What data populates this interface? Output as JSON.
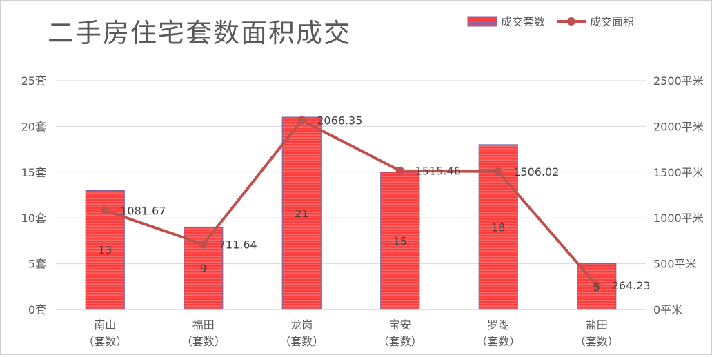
{
  "chart_data": {
    "type": "bar+line",
    "title": "二手房住宅套数面积成交",
    "categories": [
      [
        "南山",
        "（套数）"
      ],
      [
        "福田",
        "（套数）"
      ],
      [
        "龙岗",
        "（套数）"
      ],
      [
        "宝安",
        "（套数）"
      ],
      [
        "罗湖",
        "（套数）"
      ],
      [
        "盐田",
        "（套数）"
      ]
    ],
    "series": [
      {
        "name": "成交套数",
        "type": "bar",
        "axis": "left",
        "values": [
          13,
          9,
          21,
          15,
          18,
          5
        ],
        "color": "#ff3b3b",
        "edge_color": "#8064a2"
      },
      {
        "name": "成交面积",
        "type": "line",
        "axis": "right",
        "values": [
          1081.67,
          711.64,
          2066.35,
          1515.46,
          1506.02,
          264.23
        ],
        "color": "#c0504d"
      }
    ],
    "y_left": {
      "ticks": [
        "0套",
        "5套",
        "10套",
        "15套",
        "20套",
        "25套"
      ],
      "range": [
        0,
        25
      ],
      "step": 5
    },
    "y_right": {
      "ticks": [
        "0平米",
        "500平米",
        "1000平米",
        "1500平米",
        "2000平米",
        "2500平米"
      ],
      "range": [
        0,
        2500
      ],
      "step": 500
    },
    "grid": true,
    "legend_position": "top-right",
    "line_labels": [
      "1081.67",
      "711.64",
      "2066.35",
      "1515.46",
      "1506.02",
      "264.23"
    ],
    "bar_labels": [
      "13",
      "9",
      "21",
      "15",
      "18",
      "5"
    ]
  }
}
